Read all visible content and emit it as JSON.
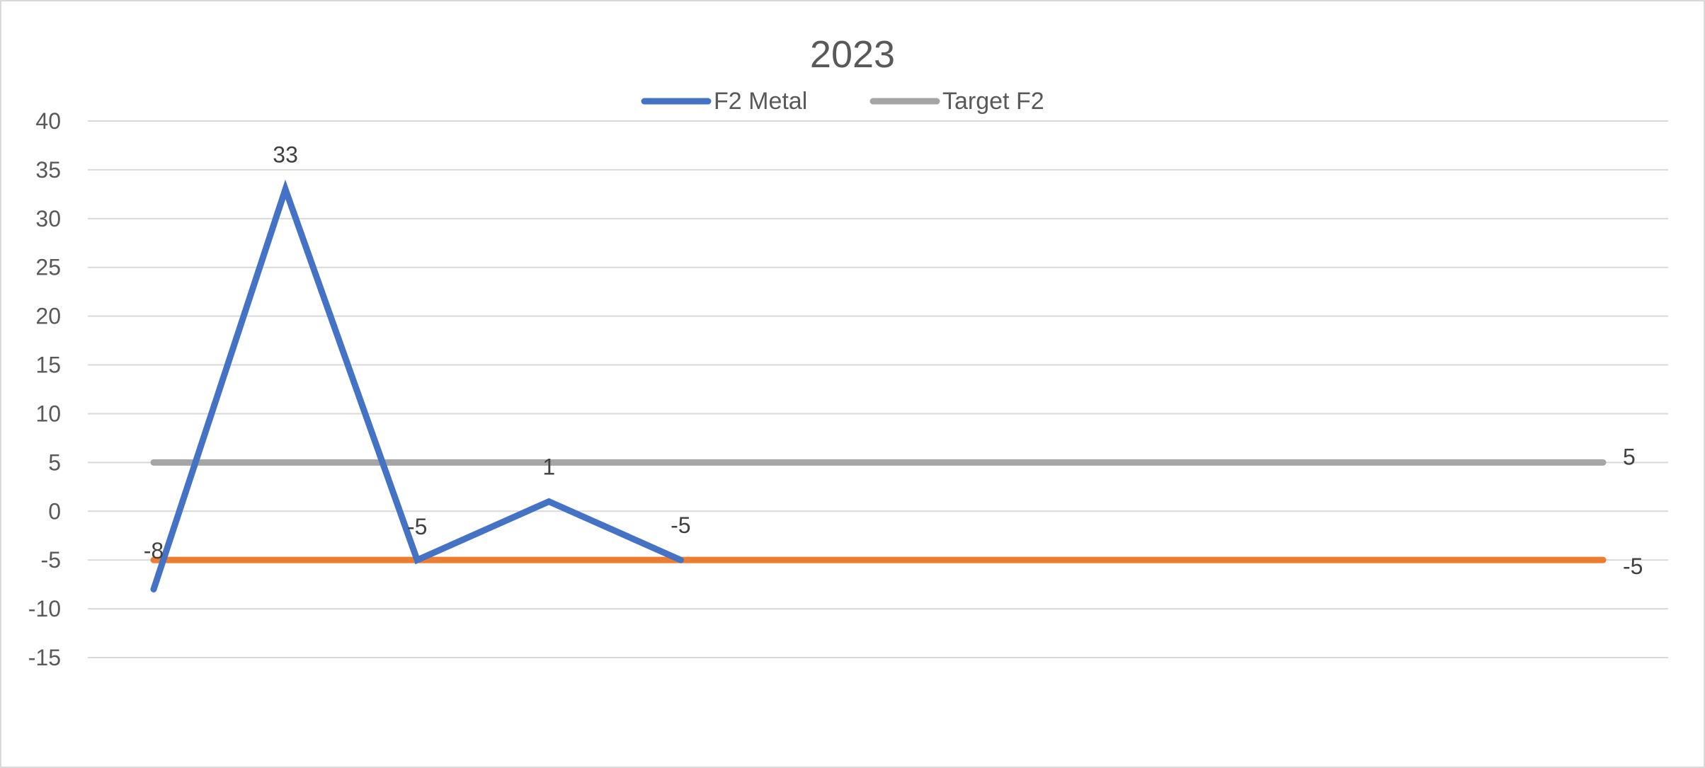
{
  "chart_data": {
    "type": "line",
    "title": "2023",
    "xlabel": "",
    "ylabel": "",
    "ylim": [
      -15,
      40
    ],
    "yticks": [
      40,
      35,
      30,
      25,
      20,
      15,
      10,
      5,
      0,
      -5,
      -10,
      -15
    ],
    "x": [
      1,
      2,
      3,
      4,
      5,
      6,
      7,
      8,
      9,
      10,
      11,
      12
    ],
    "grid": true,
    "legend_position": "top",
    "series": [
      {
        "name": "F2 Metal",
        "color": "#4472C4",
        "values": [
          -8,
          33,
          -5,
          1,
          -5,
          null,
          null,
          null,
          null,
          null,
          null,
          null
        ],
        "labels": [
          "-8",
          "33",
          "-5",
          "1",
          "-5"
        ]
      },
      {
        "name": "Target F2",
        "color": "#A5A5A5",
        "values": [
          5,
          5,
          5,
          5,
          5,
          5,
          5,
          5,
          5,
          5,
          5,
          5
        ],
        "end_label": "5"
      },
      {
        "color": "#ED7D31",
        "values": [
          -5,
          -5,
          -5,
          -5,
          -5,
          -5,
          -5,
          -5,
          -5,
          -5,
          -5,
          -5
        ],
        "end_label": "-5"
      }
    ]
  }
}
